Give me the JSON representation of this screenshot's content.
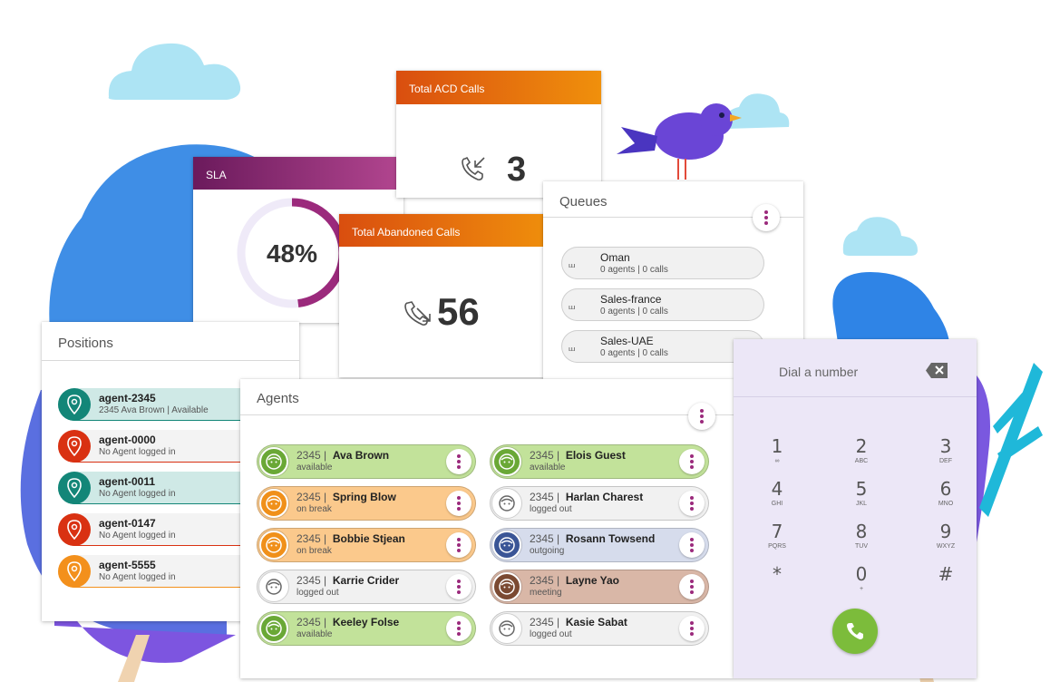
{
  "sla": {
    "title": "SLA",
    "value": "48%",
    "percent": 48,
    "color": "#9b2a7c"
  },
  "total_acd": {
    "title": "Total ACD Calls",
    "value": "3",
    "icon": "incoming-call-icon"
  },
  "total_abandoned": {
    "title": "Total Abandoned Calls",
    "value": "56",
    "icon": "missed-call-icon"
  },
  "queues": {
    "title": "Queues",
    "items": [
      {
        "name": "Oman",
        "detail": "0 agents | 0 calls"
      },
      {
        "name": "Sales-france",
        "detail": "0 agents | 0 calls"
      },
      {
        "name": "Sales-UAE",
        "detail": "0 agents | 0 calls"
      }
    ]
  },
  "positions": {
    "title": "Positions",
    "items": [
      {
        "name": "agent-2345",
        "detail": "2345  Ava Brown | Available",
        "status_color": "#138678",
        "bg": "#cfe9e6"
      },
      {
        "name": "agent-0000",
        "detail": "No Agent logged in",
        "status_color": "#d93112",
        "bg": "#f3f3f3"
      },
      {
        "name": "agent-0011",
        "detail": "No Agent logged in",
        "status_color": "#138678",
        "bg": "#cfe9e6"
      },
      {
        "name": "agent-0147",
        "detail": "No Agent logged in",
        "status_color": "#d93112",
        "bg": "#f3f3f3"
      },
      {
        "name": "agent-5555",
        "detail": "No Agent logged in",
        "status_color": "#f3901c",
        "bg": "#f3f3f3"
      }
    ]
  },
  "agents": {
    "title": "Agents",
    "items": [
      {
        "ext": "2345 |",
        "name": "Ava Brown",
        "status": "available",
        "bg": "#c2e29a",
        "avatar": "#6aa836"
      },
      {
        "ext": "2345 |",
        "name": "Elois Guest",
        "status": "available",
        "bg": "#c2e29a",
        "avatar": "#6aa836"
      },
      {
        "ext": "2345 |",
        "name": "Spring Blow",
        "status": "on break",
        "bg": "#fbc98c",
        "avatar": "#f0901a"
      },
      {
        "ext": "2345 |",
        "name": "Harlan Charest",
        "status": "logged out",
        "bg": "#f1f1f1",
        "avatar": "#ffffff"
      },
      {
        "ext": "2345 |",
        "name": "Bobbie Stjean",
        "status": "on break",
        "bg": "#fbc98c",
        "avatar": "#f0901a"
      },
      {
        "ext": "2345 |",
        "name": "Rosann Towsend",
        "status": "outgoing",
        "bg": "#d6dcec",
        "avatar": "#3a5596"
      },
      {
        "ext": "2345 |",
        "name": "Karrie Crider",
        "status": "logged out",
        "bg": "#f1f1f1",
        "avatar": "#ffffff"
      },
      {
        "ext": "2345 |",
        "name": "Layne Yao",
        "status": "meeting",
        "bg": "#d9b7a7",
        "avatar": "#7b4a32"
      },
      {
        "ext": "2345 |",
        "name": "Keeley Folse",
        "status": "available",
        "bg": "#c2e29a",
        "avatar": "#6aa836"
      },
      {
        "ext": "2345 |",
        "name": "Kasie Sabat",
        "status": "logged out",
        "bg": "#f1f1f1",
        "avatar": "#ffffff"
      }
    ]
  },
  "dialer": {
    "placeholder": "Dial a number",
    "backspace_icon": "backspace-icon",
    "call_icon": "phone-icon",
    "call_color": "#7cbc3b",
    "keys": [
      {
        "digit": "1",
        "letters": "voicemail-icon"
      },
      {
        "digit": "2",
        "letters": "ABC"
      },
      {
        "digit": "3",
        "letters": "DEF"
      },
      {
        "digit": "4",
        "letters": "GHI"
      },
      {
        "digit": "5",
        "letters": "JKL"
      },
      {
        "digit": "6",
        "letters": "MNO"
      },
      {
        "digit": "7",
        "letters": "PQRS"
      },
      {
        "digit": "8",
        "letters": "TUV"
      },
      {
        "digit": "9",
        "letters": "WXYZ"
      },
      {
        "digit": "*",
        "letters": ""
      },
      {
        "digit": "0",
        "letters": "+"
      },
      {
        "digit": "#",
        "letters": ""
      }
    ]
  }
}
